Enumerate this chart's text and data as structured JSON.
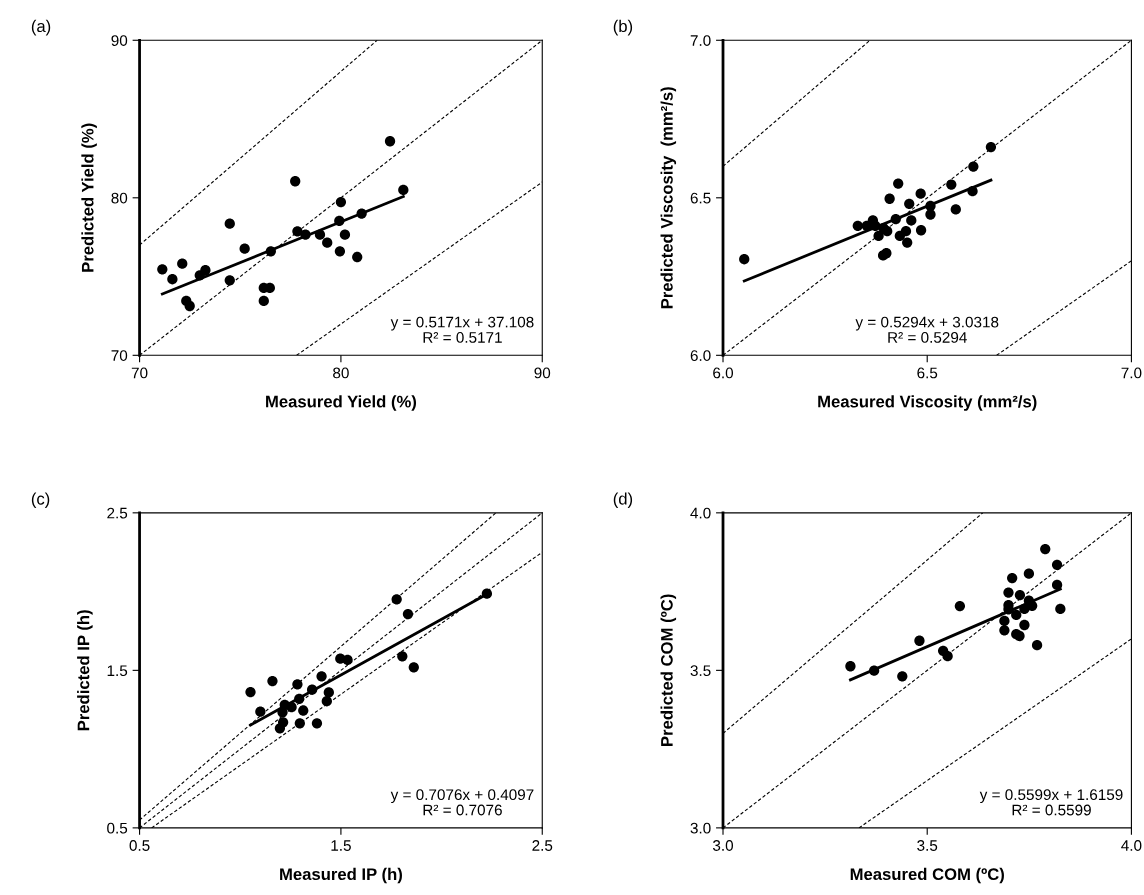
{
  "chart_data": [
    {
      "type": "scatter",
      "title": "(a)",
      "xlabel": "Measured Yield (%)",
      "ylabel": "Predicted Yield (%)",
      "xlim": [
        70,
        90
      ],
      "ylim": [
        70,
        90
      ],
      "xticks": [
        70,
        80,
        90
      ],
      "yticks": [
        70,
        80,
        90
      ],
      "grid": false,
      "legend": false,
      "annotations": [
        "y = 0.5171x + 37.108",
        "R² = 0.5171"
      ],
      "series": [
        {
          "marker": "circle",
          "color": "#000000",
          "x": [
            71.13,
            71.63,
            72.12,
            72.32,
            72.49,
            72.99,
            73.27,
            74.48,
            74.48,
            75.22,
            76.17,
            76.47,
            76.17,
            76.52,
            77.73,
            77.84,
            78.24,
            78.96,
            79.32,
            79.95,
            79.92,
            80.0,
            80.2,
            80.81,
            81.03,
            82.44,
            83.1
          ],
          "values": [
            75.46,
            74.83,
            75.82,
            73.45,
            73.13,
            75.08,
            75.4,
            78.36,
            74.76,
            76.77,
            74.28,
            74.28,
            73.45,
            76.6,
            81.05,
            77.87,
            77.66,
            77.66,
            77.15,
            76.6,
            78.53,
            79.73,
            77.66,
            76.24,
            79.0,
            83.59,
            80.5
          ]
        },
        {
          "type": "line",
          "line_style": "solid",
          "color": "#000000",
          "x": [
            71.13,
            83.1
          ],
          "values": [
            73.89,
            80.08
          ]
        },
        {
          "type": "line",
          "line_style": "dashed",
          "color": "#000000",
          "x": [
            70,
            90
          ],
          "values": [
            70,
            90
          ]
        },
        {
          "type": "line",
          "line_style": "dashed",
          "color": "#000000",
          "x": [
            70,
            81.8
          ],
          "values": [
            77,
            90
          ]
        },
        {
          "type": "line",
          "line_style": "dashed",
          "color": "#000000",
          "x": [
            77.8,
            90
          ],
          "values": [
            70,
            81
          ]
        }
      ]
    },
    {
      "type": "scatter",
      "title": "(b)",
      "xlabel": "Measured Viscosity (mm²/s)",
      "ylabel": "Predicted Viscosity  (mm²/s)",
      "xlim": [
        6.0,
        7.0
      ],
      "ylim": [
        6.0,
        7.0
      ],
      "xticks": [
        {
          "value": 6.0,
          "label": "6.0"
        },
        6.5,
        {
          "value": 7.0,
          "label": "7.0"
        }
      ],
      "yticks": [
        {
          "value": 6.0,
          "label": "6.0"
        },
        6.5,
        {
          "value": 7.0,
          "label": "7.0"
        }
      ],
      "grid": false,
      "legend": false,
      "annotations": [
        "y = 0.5294x + 3.0318",
        "R² = 0.5294"
      ],
      "series": [
        {
          "marker": "circle",
          "color": "#000000",
          "x": [
            6.052,
            6.33,
            6.352,
            6.367,
            6.373,
            6.381,
            6.393,
            6.402,
            6.392,
            6.4,
            6.408,
            6.423,
            6.429,
            6.433,
            6.448,
            6.451,
            6.456,
            6.461,
            6.484,
            6.485,
            6.508,
            6.508,
            6.559,
            6.57,
            6.611,
            6.613,
            6.656
          ],
          "values": [
            6.305,
            6.411,
            6.411,
            6.428,
            6.411,
            6.379,
            6.404,
            6.394,
            6.317,
            6.324,
            6.497,
            6.432,
            6.545,
            6.379,
            6.394,
            6.358,
            6.481,
            6.428,
            6.513,
            6.397,
            6.474,
            6.447,
            6.542,
            6.463,
            6.521,
            6.599,
            6.661
          ]
        },
        {
          "type": "line",
          "line_style": "solid",
          "color": "#000000",
          "x": [
            6.052,
            6.656
          ],
          "values": [
            6.236,
            6.556
          ]
        },
        {
          "type": "line",
          "line_style": "dashed",
          "color": "#000000",
          "x": [
            6.0,
            7.0
          ],
          "values": [
            6.0,
            7.0
          ]
        },
        {
          "type": "line",
          "line_style": "dashed",
          "color": "#000000",
          "x": [
            6.0,
            6.36
          ],
          "values": [
            6.6,
            7.0
          ]
        },
        {
          "type": "line",
          "line_style": "dashed",
          "color": "#000000",
          "x": [
            6.67,
            7.0
          ],
          "values": [
            6.0,
            6.3
          ]
        }
      ]
    },
    {
      "type": "scatter",
      "title": "(c)",
      "xlabel": "Measured IP (h)",
      "ylabel": "Predicted IP (h)",
      "xlim": [
        0.5,
        2.5
      ],
      "ylim": [
        0.5,
        2.5
      ],
      "xticks": [
        0.5,
        1.5,
        2.5
      ],
      "yticks": [
        0.5,
        1.5,
        2.5
      ],
      "grid": false,
      "legend": false,
      "annotations": [
        "y = 0.7076x + 0.4097",
        "R² = 0.7076"
      ],
      "series": [
        {
          "marker": "circle",
          "color": "#000000",
          "x": [
            1.051,
            1.1,
            1.16,
            1.197,
            1.213,
            1.21,
            1.221,
            1.255,
            1.284,
            1.293,
            1.296,
            1.313,
            1.357,
            1.381,
            1.404,
            1.43,
            1.44,
            1.497,
            1.533,
            1.777,
            1.805,
            1.833,
            1.862,
            2.225
          ],
          "values": [
            1.362,
            1.238,
            1.432,
            1.132,
            1.17,
            1.234,
            1.281,
            1.266,
            1.411,
            1.319,
            1.164,
            1.245,
            1.377,
            1.164,
            1.462,
            1.304,
            1.36,
            1.574,
            1.566,
            1.951,
            1.589,
            1.857,
            1.519,
            1.987
          ]
        },
        {
          "type": "line",
          "line_style": "solid",
          "color": "#000000",
          "x": [
            1.051,
            2.225
          ],
          "values": [
            1.153,
            1.984
          ]
        },
        {
          "type": "line",
          "line_style": "dashed",
          "color": "#000000",
          "x": [
            0.5,
            2.5
          ],
          "values": [
            0.5,
            2.5
          ]
        },
        {
          "type": "line",
          "line_style": "dashed",
          "color": "#000000",
          "x": [
            0.5,
            2.27
          ],
          "values": [
            0.55,
            2.5
          ]
        },
        {
          "type": "line",
          "line_style": "dashed",
          "color": "#000000",
          "x": [
            0.56,
            2.5
          ],
          "values": [
            0.5,
            2.25
          ]
        }
      ]
    },
    {
      "type": "scatter",
      "title": "(d)",
      "xlabel": "Measured COM (ºC)",
      "ylabel": "Predicted COM (ºC)",
      "xlim": [
        3.0,
        4.0
      ],
      "ylim": [
        3.0,
        4.0
      ],
      "xticks": [
        {
          "value": 3.0,
          "label": "3.0"
        },
        3.5,
        {
          "value": 4.0,
          "label": "4.0"
        }
      ],
      "yticks": [
        {
          "value": 3.0,
          "label": "3.0"
        },
        3.5,
        {
          "value": 4.0,
          "label": "4.0"
        }
      ],
      "grid": false,
      "legend": false,
      "annotations": [
        "y = 0.5599x + 1.6159",
        "R² = 0.5599"
      ],
      "series": [
        {
          "marker": "circle",
          "color": "#000000",
          "x": [
            3.312,
            3.37,
            3.439,
            3.481,
            3.539,
            3.55,
            3.58,
            3.689,
            3.689,
            3.699,
            3.699,
            3.699,
            3.708,
            3.718,
            3.718,
            3.726,
            3.727,
            3.738,
            3.738,
            3.749,
            3.749,
            3.757,
            3.769,
            3.789,
            3.818,
            3.818,
            3.826
          ],
          "values": [
            3.513,
            3.499,
            3.481,
            3.594,
            3.562,
            3.545,
            3.704,
            3.657,
            3.627,
            3.747,
            3.707,
            3.694,
            3.793,
            3.676,
            3.615,
            3.609,
            3.739,
            3.695,
            3.644,
            3.807,
            3.721,
            3.705,
            3.58,
            3.885,
            3.835,
            3.771,
            3.695
          ]
        },
        {
          "type": "line",
          "line_style": "solid",
          "color": "#000000",
          "x": [
            3.312,
            3.826
          ],
          "values": [
            3.47,
            3.758
          ]
        },
        {
          "type": "line",
          "line_style": "dashed",
          "color": "#000000",
          "x": [
            3.0,
            4.0
          ],
          "values": [
            3.0,
            4.0
          ]
        },
        {
          "type": "line",
          "line_style": "dashed",
          "color": "#000000",
          "x": [
            3.0,
            3.636
          ],
          "values": [
            3.3,
            4.0
          ]
        },
        {
          "type": "line",
          "line_style": "dashed",
          "color": "#000000",
          "x": [
            3.333,
            4.0
          ],
          "values": [
            3.0,
            3.6
          ]
        }
      ]
    }
  ]
}
